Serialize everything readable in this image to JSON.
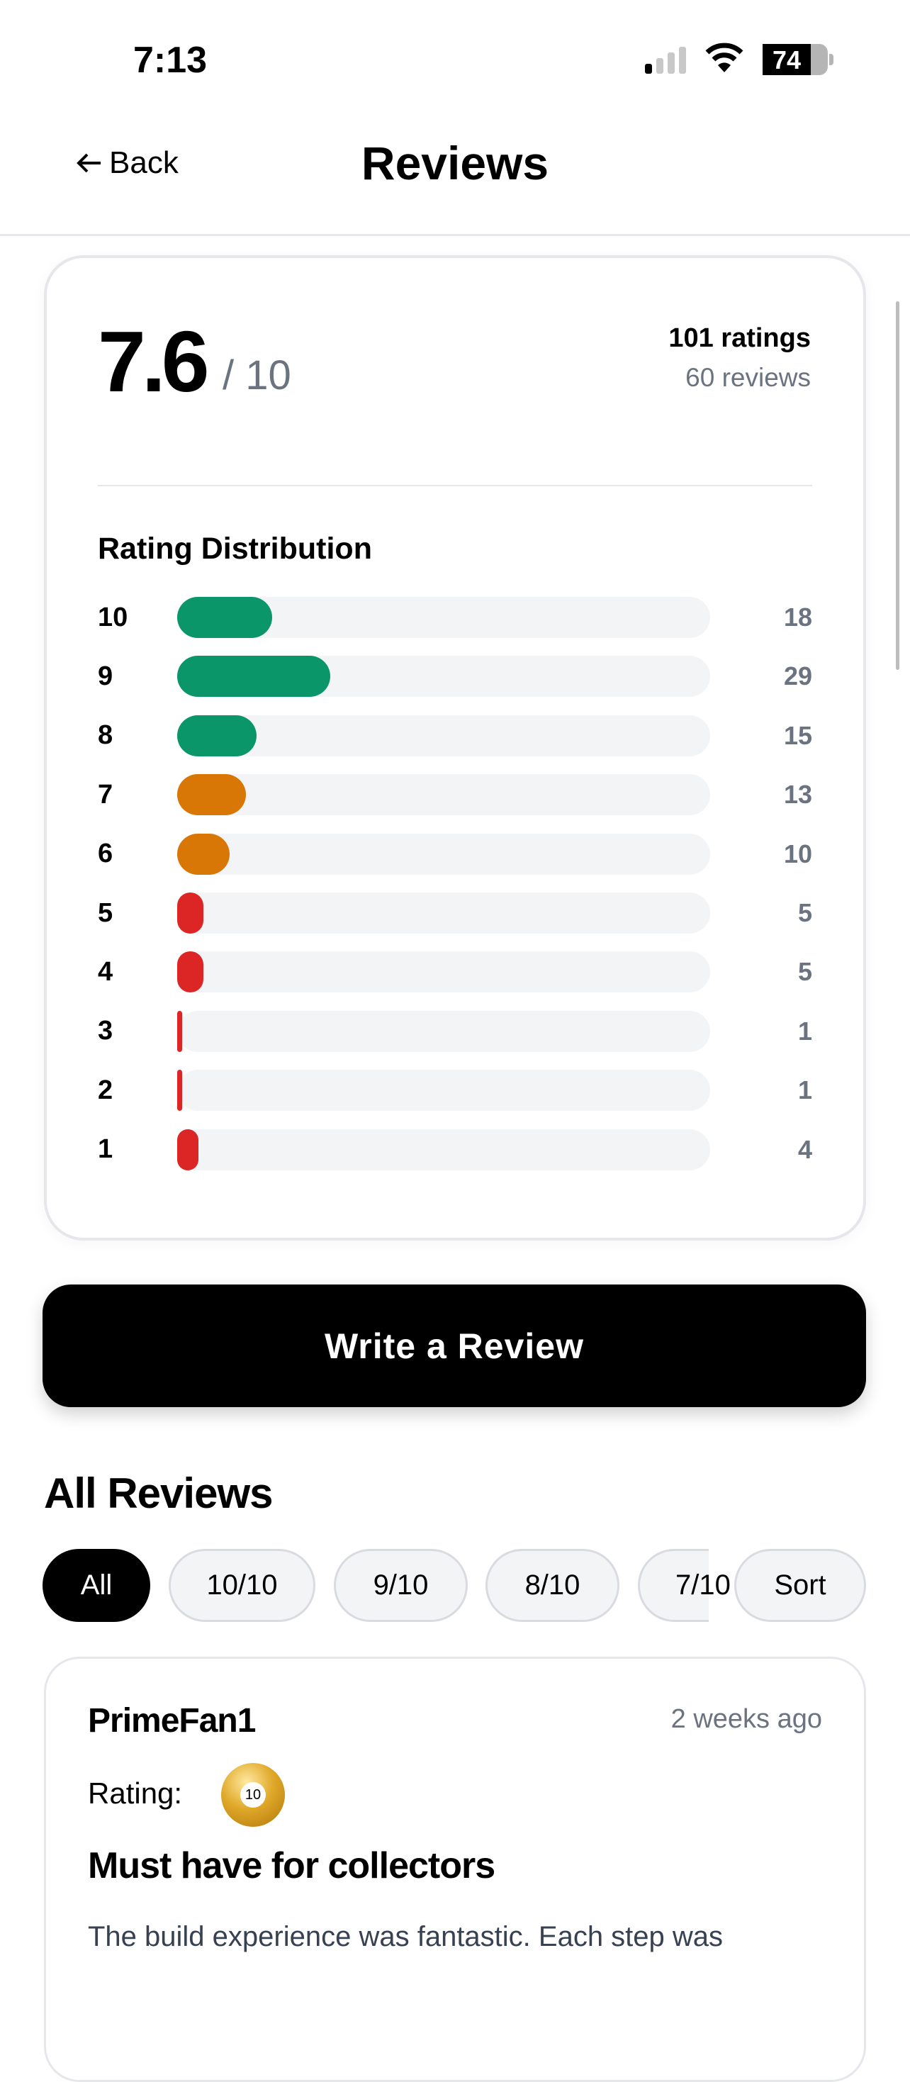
{
  "status_bar": {
    "time": "7:13",
    "battery": "74",
    "battery_level": 0.74
  },
  "header": {
    "back_label": "Back",
    "title": "Reviews"
  },
  "summary": {
    "score": "7.6",
    "out_of": "/ 10",
    "ratings": "101 ratings",
    "reviews": "60 reviews"
  },
  "distribution": {
    "title": "Rating Distribution",
    "total": 101,
    "colors": {
      "high": "#0a9669",
      "mid": "#d97706",
      "low": "#dc2626",
      "track": "#f3f4f6"
    },
    "rows": [
      {
        "label": "10",
        "count": 18,
        "tier": "high"
      },
      {
        "label": "9",
        "count": 29,
        "tier": "high"
      },
      {
        "label": "8",
        "count": 15,
        "tier": "high"
      },
      {
        "label": "7",
        "count": 13,
        "tier": "mid"
      },
      {
        "label": "6",
        "count": 10,
        "tier": "mid"
      },
      {
        "label": "5",
        "count": 5,
        "tier": "low"
      },
      {
        "label": "4",
        "count": 5,
        "tier": "low"
      },
      {
        "label": "3",
        "count": 1,
        "tier": "low"
      },
      {
        "label": "2",
        "count": 1,
        "tier": "low"
      },
      {
        "label": "1",
        "count": 4,
        "tier": "low"
      }
    ]
  },
  "write_review_label": "Write a Review",
  "all_reviews": {
    "title": "All Reviews",
    "filters": [
      "All",
      "10/10",
      "9/10",
      "8/10",
      "7/10"
    ],
    "active_filter": "All",
    "sort_label": "Sort"
  },
  "reviews": [
    {
      "user": "PrimeFan1",
      "date": "2 weeks ago",
      "rating_label": "Rating:",
      "rating": "10",
      "title": "Must have for collectors",
      "body": "The build experience was fantastic. Each step was"
    }
  ]
}
